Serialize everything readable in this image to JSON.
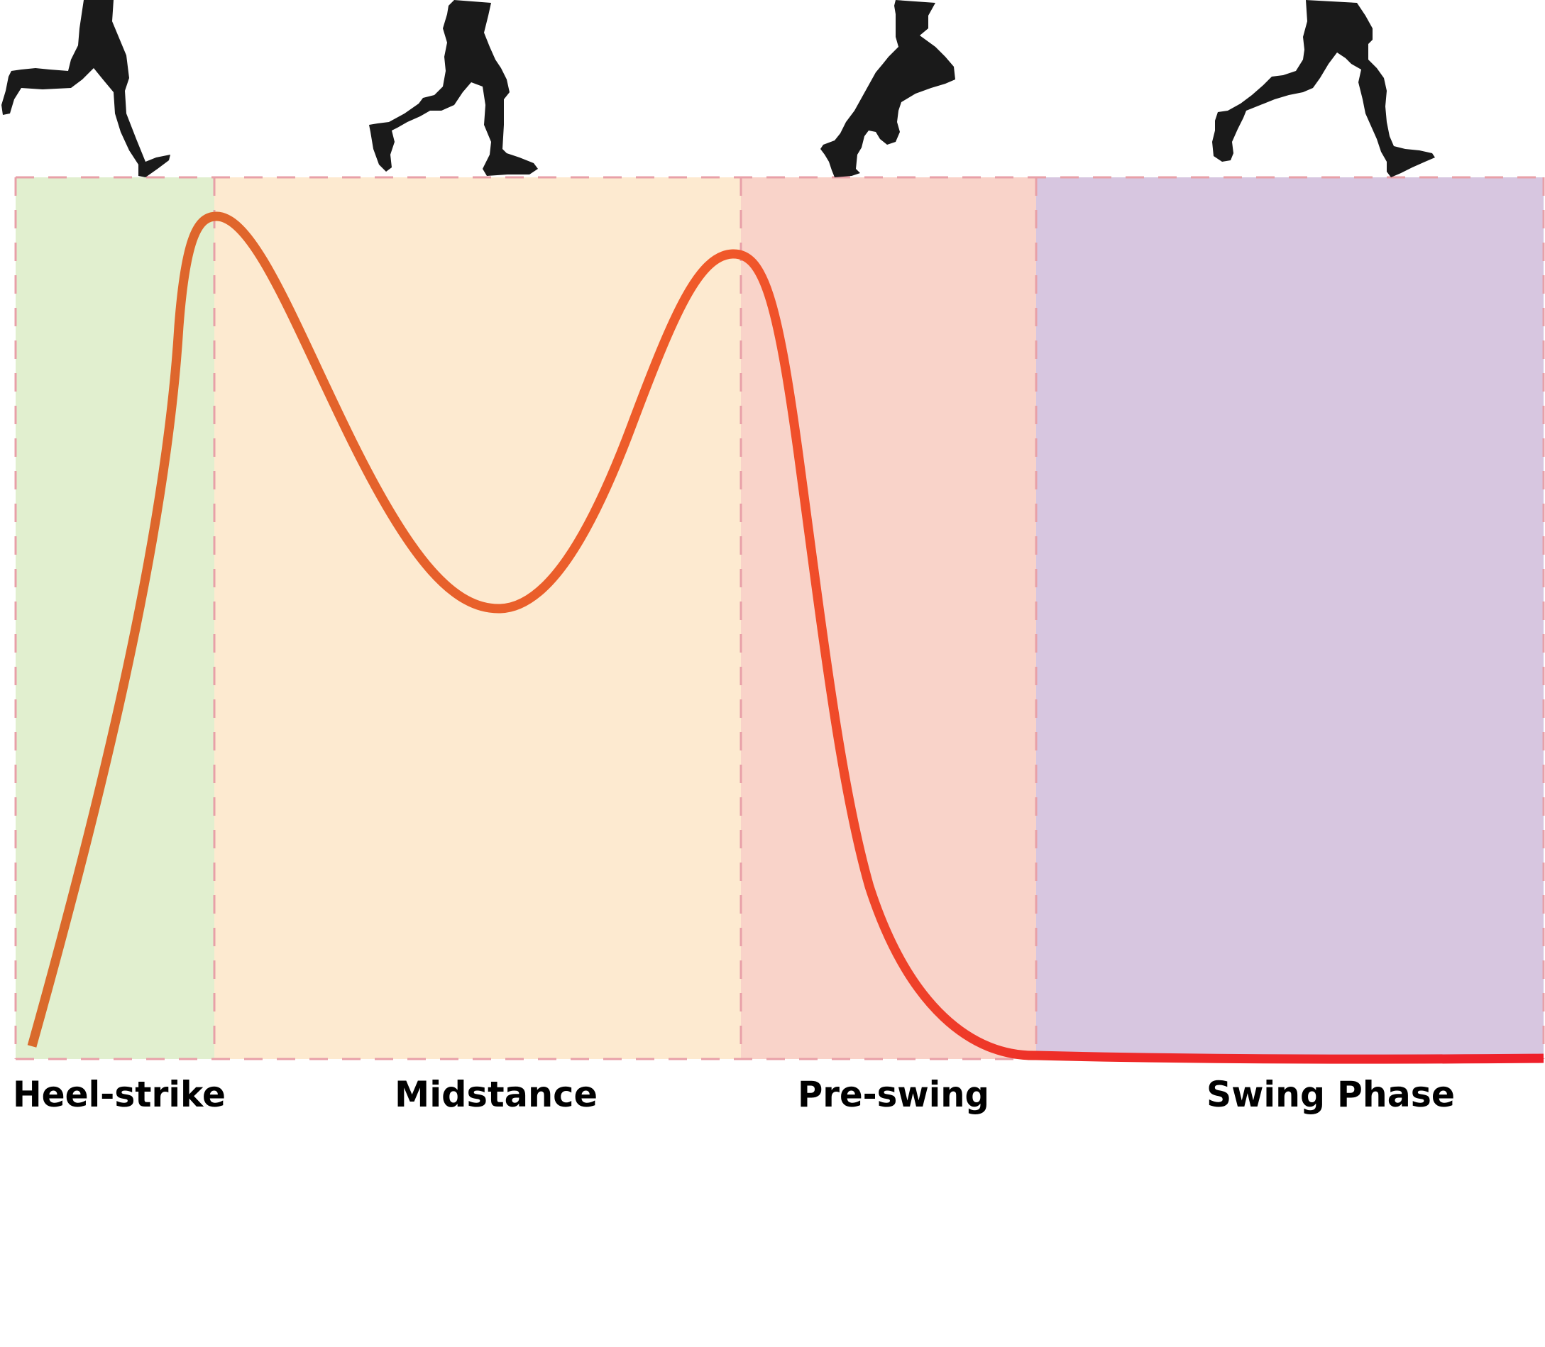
{
  "colors": {
    "heel_strike_band": "#e1efcf",
    "midstance_band": "#fdead0",
    "pre_swing_band": "#f9d3c9",
    "swing_band": "#d7c6e0",
    "boundary_line": "#e8a0a8",
    "curve_start": "#d96a2c",
    "curve_mid": "#f05a2a",
    "curve_end": "#ee1f2a",
    "silhouette": "#1a1a1a"
  },
  "phases": [
    {
      "key": "heel_strike",
      "label": "Heel-strike",
      "silhouette_icon": "runner-legs-heel-strike-icon"
    },
    {
      "key": "midstance",
      "label": "Midstance",
      "silhouette_icon": "runner-legs-midstance-icon"
    },
    {
      "key": "pre_swing",
      "label": "Pre-swing",
      "silhouette_icon": "runner-legs-pre-swing-icon"
    },
    {
      "key": "swing",
      "label": "Swing Phase",
      "silhouette_icon": "runner-legs-swing-icon"
    }
  ]
}
